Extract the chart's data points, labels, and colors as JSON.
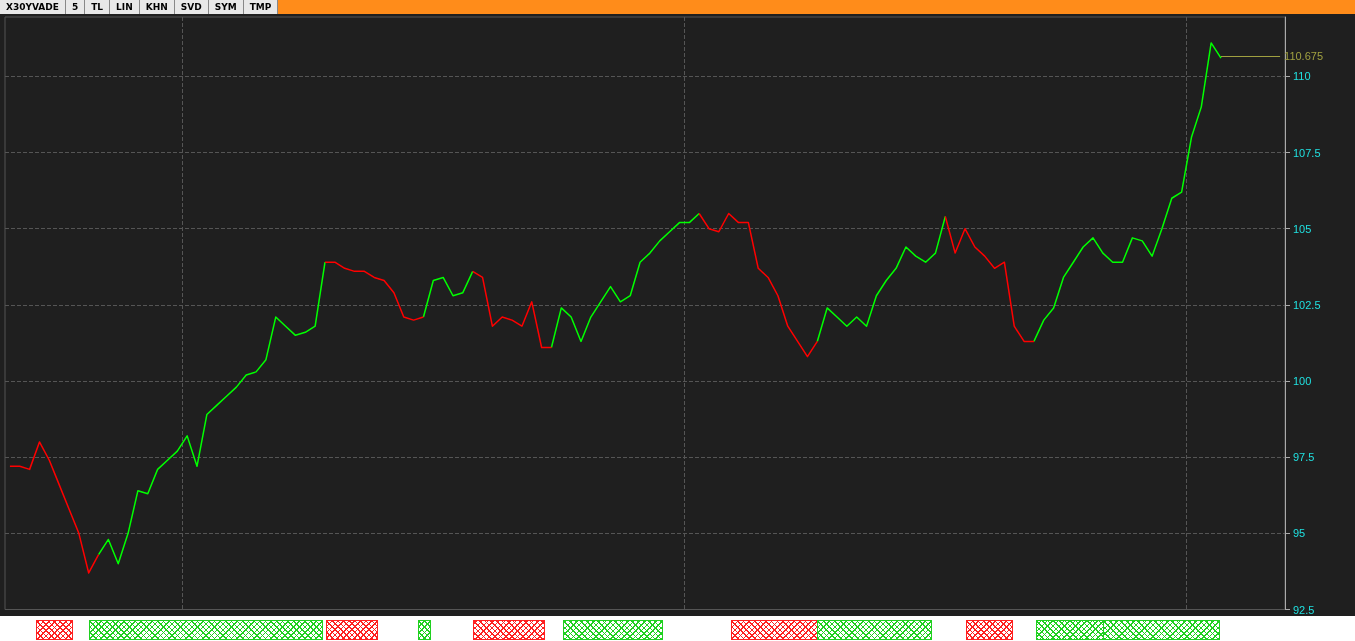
{
  "chart_data": {
    "type": "line",
    "title": "X30YVADE",
    "annotations": [
      "5",
      "TL",
      "LIN",
      "KHN",
      "SVD",
      "SYM",
      "TMP"
    ],
    "categories": [
      null,
      null,
      null,
      null,
      null,
      null,
      null,
      null,
      null,
      null,
      null,
      null,
      null,
      null,
      null,
      null,
      null,
      null,
      null,
      null,
      null,
      null,
      null,
      null,
      null,
      null,
      null,
      null,
      null,
      null,
      null,
      null,
      null,
      null,
      null,
      null,
      null,
      null,
      null,
      null,
      null,
      null,
      null,
      null,
      null,
      null,
      null,
      null,
      null,
      null,
      null,
      null,
      null,
      null,
      null,
      null,
      null,
      null,
      null,
      null,
      null,
      null,
      null,
      null,
      null,
      null,
      null,
      null,
      null,
      null,
      null,
      null,
      null,
      null,
      null,
      null,
      null,
      null,
      null,
      null,
      null,
      null,
      null,
      null,
      null,
      null,
      null,
      null,
      null,
      null,
      null,
      null,
      null,
      null,
      null,
      null,
      null,
      null,
      null,
      null,
      null,
      null,
      null,
      null,
      null,
      null,
      null,
      null,
      null,
      null,
      null,
      null,
      null,
      null,
      null,
      null,
      null,
      null,
      null,
      null,
      null,
      null,
      null,
      null,
      null,
      null,
      null,
      null,
      null,
      null
    ],
    "series": [
      {
        "color": "#00ff00",
        "values": [
          null,
          null,
          null,
          null,
          null,
          null,
          null,
          null,
          null,
          94.3,
          94.8,
          94.0,
          95.0,
          96.4,
          96.3,
          97.1,
          97.4,
          97.7,
          98.2,
          97.2,
          98.9,
          99.2,
          99.5,
          99.8,
          100.2,
          100.3,
          100.7,
          102.1,
          101.8,
          101.5,
          101.6,
          101.8,
          103.9,
          null,
          null,
          null,
          null,
          null,
          null,
          null,
          null,
          null,
          102.1,
          103.3,
          103.4,
          102.8,
          102.9,
          103.6,
          null,
          null,
          null,
          null,
          null,
          null,
          null,
          101.1,
          102.4,
          102.1,
          101.3,
          102.1,
          102.6,
          103.1,
          102.6,
          102.8,
          103.9,
          104.2,
          104.6,
          104.9,
          105.2,
          105.2,
          105.5,
          null,
          null,
          null,
          null,
          null,
          null,
          null,
          null,
          null,
          null,
          null,
          101.3,
          102.4,
          102.1,
          101.8,
          102.1,
          101.8,
          102.8,
          103.3,
          103.7,
          104.4,
          104.1,
          103.9,
          104.2,
          105.4,
          null,
          null,
          null,
          null,
          null,
          null,
          null,
          null,
          101.3,
          102.0,
          102.4,
          103.4,
          103.9,
          104.4,
          104.7,
          104.2,
          103.9,
          103.9,
          104.7,
          104.6,
          104.1,
          105.0,
          106.0,
          106.2,
          108.0,
          109.0,
          111.1,
          110.6,
          null,
          null,
          null,
          null,
          null,
          null
        ]
      },
      {
        "color": "#ff0000",
        "values": [
          97.2,
          97.2,
          97.1,
          98.0,
          97.4,
          96.6,
          95.8,
          95.0,
          93.7,
          94.3,
          null,
          null,
          null,
          null,
          null,
          null,
          null,
          null,
          null,
          null,
          null,
          null,
          null,
          null,
          null,
          null,
          null,
          null,
          null,
          null,
          null,
          null,
          103.9,
          103.9,
          103.7,
          103.6,
          103.6,
          103.4,
          103.3,
          102.9,
          102.1,
          102.0,
          102.1,
          null,
          null,
          null,
          null,
          103.6,
          103.4,
          101.8,
          102.1,
          102.0,
          101.8,
          102.6,
          101.1,
          101.1,
          null,
          null,
          null,
          null,
          null,
          null,
          null,
          null,
          null,
          null,
          null,
          null,
          null,
          null,
          105.5,
          105.0,
          104.9,
          105.5,
          105.2,
          105.2,
          103.7,
          103.4,
          102.8,
          101.8,
          101.3,
          100.8,
          101.3,
          null,
          null,
          null,
          null,
          null,
          null,
          null,
          null,
          null,
          null,
          null,
          null,
          105.4,
          104.2,
          105.0,
          104.4,
          104.1,
          103.7,
          103.9,
          101.8,
          101.3,
          101.3,
          null,
          null,
          null,
          null,
          null,
          null,
          null,
          null,
          null,
          null,
          null,
          null,
          null,
          null,
          null,
          null,
          null,
          null,
          null,
          null,
          null,
          null,
          null,
          null,
          null
        ]
      }
    ],
    "ylim": [
      92.5,
      111.95
    ],
    "yticks": [
      92.5,
      95,
      97.5,
      100,
      102.5,
      105,
      107.5,
      110
    ],
    "ref_lines": [
      {
        "axis": "y",
        "value": 110.675,
        "label": "110.675",
        "color": "#a0a040"
      }
    ],
    "grid": true,
    "marker": "none",
    "line_style": "solid",
    "tick_labels": "y"
  }
}
